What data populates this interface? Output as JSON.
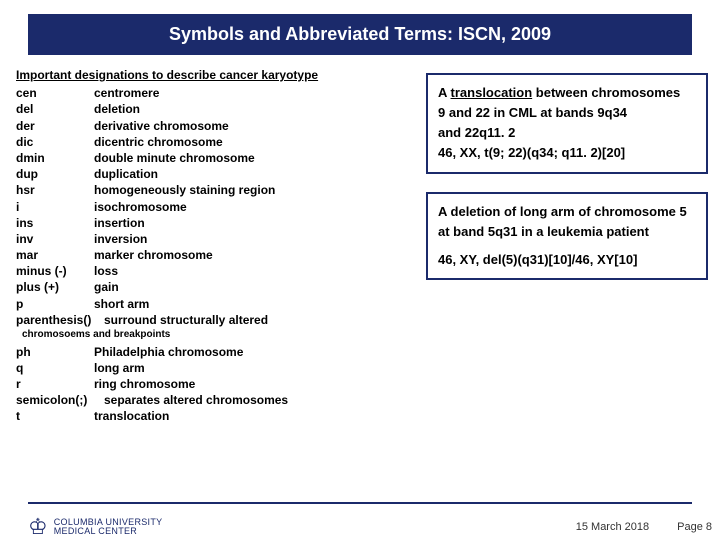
{
  "header": {
    "title": "Symbols and Abbreviated Terms: ISCN, 2009"
  },
  "left": {
    "heading": "Important designations to describe cancer karyotype",
    "terms": [
      {
        "abbr": "cen",
        "def": "centromere"
      },
      {
        "abbr": "del",
        "def": "deletion"
      },
      {
        "abbr": "der",
        "def": "derivative chromosome"
      },
      {
        "abbr": "dic",
        "def": "dicentric chromosome"
      },
      {
        "abbr": "dmin",
        "def": "double minute chromosome"
      },
      {
        "abbr": "dup",
        "def": "duplication"
      },
      {
        "abbr": "hsr",
        "def": "homogeneously staining region"
      },
      {
        "abbr": "i",
        "def": "isochromosome"
      },
      {
        "abbr": "ins",
        "def": "insertion"
      },
      {
        "abbr": "inv",
        "def": "inversion"
      },
      {
        "abbr": "mar",
        "def": "marker chromosome"
      },
      {
        "abbr": "minus (-)",
        "def": "loss"
      },
      {
        "abbr": "plus (+)",
        "def": "gain"
      },
      {
        "abbr": "p",
        "def": "short arm"
      }
    ],
    "paren_abbr": "parenthesis()",
    "paren_def": "surround structurally altered",
    "paren_note": "chromosoems and breakpoints",
    "terms2": [
      {
        "abbr": "ph",
        "def": "Philadelphia chromosome"
      },
      {
        "abbr": "q",
        "def": "long arm"
      },
      {
        "abbr": "r",
        "def": "ring chromosome"
      }
    ],
    "semi_abbr": "semicolon(;)",
    "semi_def": "separates altered chromosomes",
    "terms3": [
      {
        "abbr": "t",
        "def": "translocation"
      }
    ]
  },
  "box1": {
    "line1a": "A ",
    "line1b": "translocation",
    "line1c": " between chromosomes",
    "line2": "9 and 22 in CML at bands 9q34",
    "line3": "and 22q11. 2",
    "line4": "46, XX, t(9; 22)(q34; q11. 2)[20]"
  },
  "box2": {
    "line1": "A deletion of long arm of chromosome 5 at band 5q31 in a leukemia patient",
    "line2": "46, XY, del(5)(q31)[10]/46, XY[10]"
  },
  "footer": {
    "logo_line1": "COLUMBIA UNIVERSITY",
    "logo_line2": "MEDICAL CENTER",
    "date": "15 March 2018",
    "page": "Page 8"
  },
  "colors": {
    "brand": "#1b2a6b",
    "text": "#000000",
    "bg": "#ffffff"
  }
}
